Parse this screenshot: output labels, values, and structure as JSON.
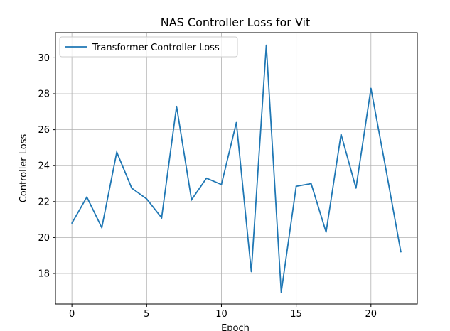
{
  "chart_data": {
    "type": "line",
    "title": "NAS Controller Loss for Vit",
    "xlabel": "Epoch",
    "ylabel": "Controller Loss",
    "xlim": [
      -1.1,
      23.1
    ],
    "ylim": [
      16.3,
      31.4
    ],
    "xticks": [
      0,
      5,
      10,
      15,
      20
    ],
    "yticks": [
      18,
      20,
      22,
      24,
      26,
      28,
      30
    ],
    "xtick_labels": [
      "0",
      "5",
      "10",
      "15",
      "20"
    ],
    "ytick_labels": [
      "18",
      "20",
      "22",
      "24",
      "26",
      "28",
      "30"
    ],
    "grid": true,
    "legend_position": "upper-left",
    "series": [
      {
        "name": "Transformer Controller Loss",
        "color": "#1f77b4",
        "x": [
          0,
          1,
          2,
          3,
          4,
          5,
          6,
          7,
          8,
          9,
          10,
          11,
          12,
          13,
          14,
          15,
          16,
          17,
          18,
          19,
          20,
          21,
          22
        ],
        "y": [
          20.8,
          22.25,
          20.55,
          24.75,
          22.75,
          22.15,
          21.1,
          27.3,
          22.1,
          23.3,
          22.95,
          26.4,
          18.1,
          30.7,
          16.95,
          22.85,
          23.0,
          20.3,
          25.75,
          22.75,
          28.3,
          23.8,
          19.2
        ]
      }
    ]
  }
}
